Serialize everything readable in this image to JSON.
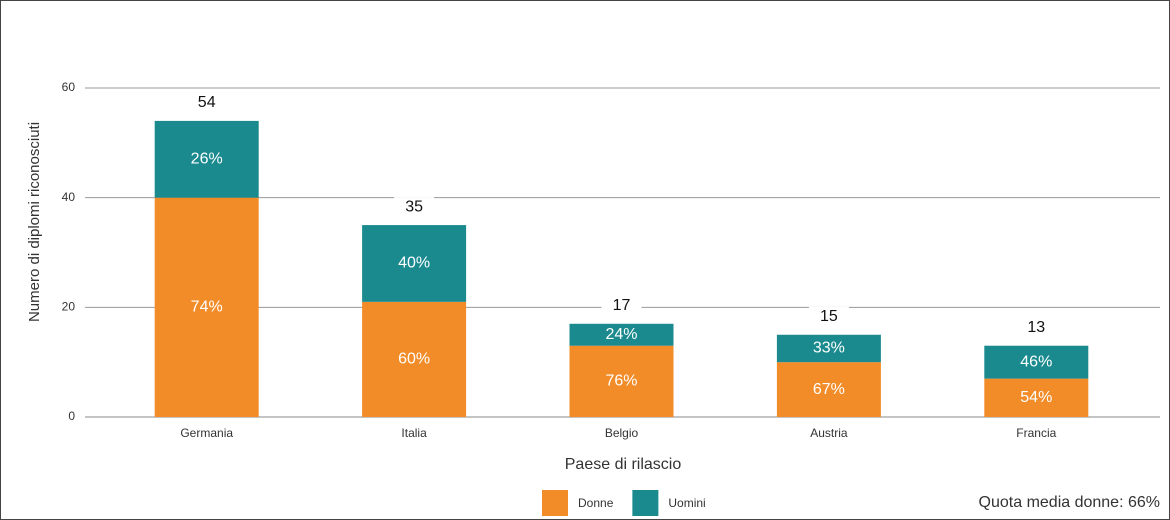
{
  "chart_data": {
    "type": "stacked_bar",
    "y_axis_label": "Numero di diplomi riconosciuti",
    "x_axis_label": "Paese di rilascio",
    "categories": [
      "Germania",
      "Italia",
      "Belgio",
      "Austria",
      "Francia"
    ],
    "series": [
      {
        "name": "Donne",
        "color": "#f28c28",
        "values": [
          40,
          21,
          13,
          10,
          7
        ],
        "value_labels": [
          "74%",
          "60%",
          "76%",
          "67%",
          "54%"
        ]
      },
      {
        "name": "Uomini",
        "color": "#1a8a8f",
        "values": [
          14,
          14,
          4,
          5,
          6
        ],
        "value_labels": [
          "26%",
          "40%",
          "24%",
          "33%",
          "46%"
        ]
      }
    ],
    "totals": [
      54,
      35,
      17,
      15,
      13
    ],
    "annotation": "Quota media donne: 66%",
    "ylim": [
      0,
      60
    ],
    "yticks": [
      0,
      20,
      40,
      60
    ],
    "grid": true
  }
}
